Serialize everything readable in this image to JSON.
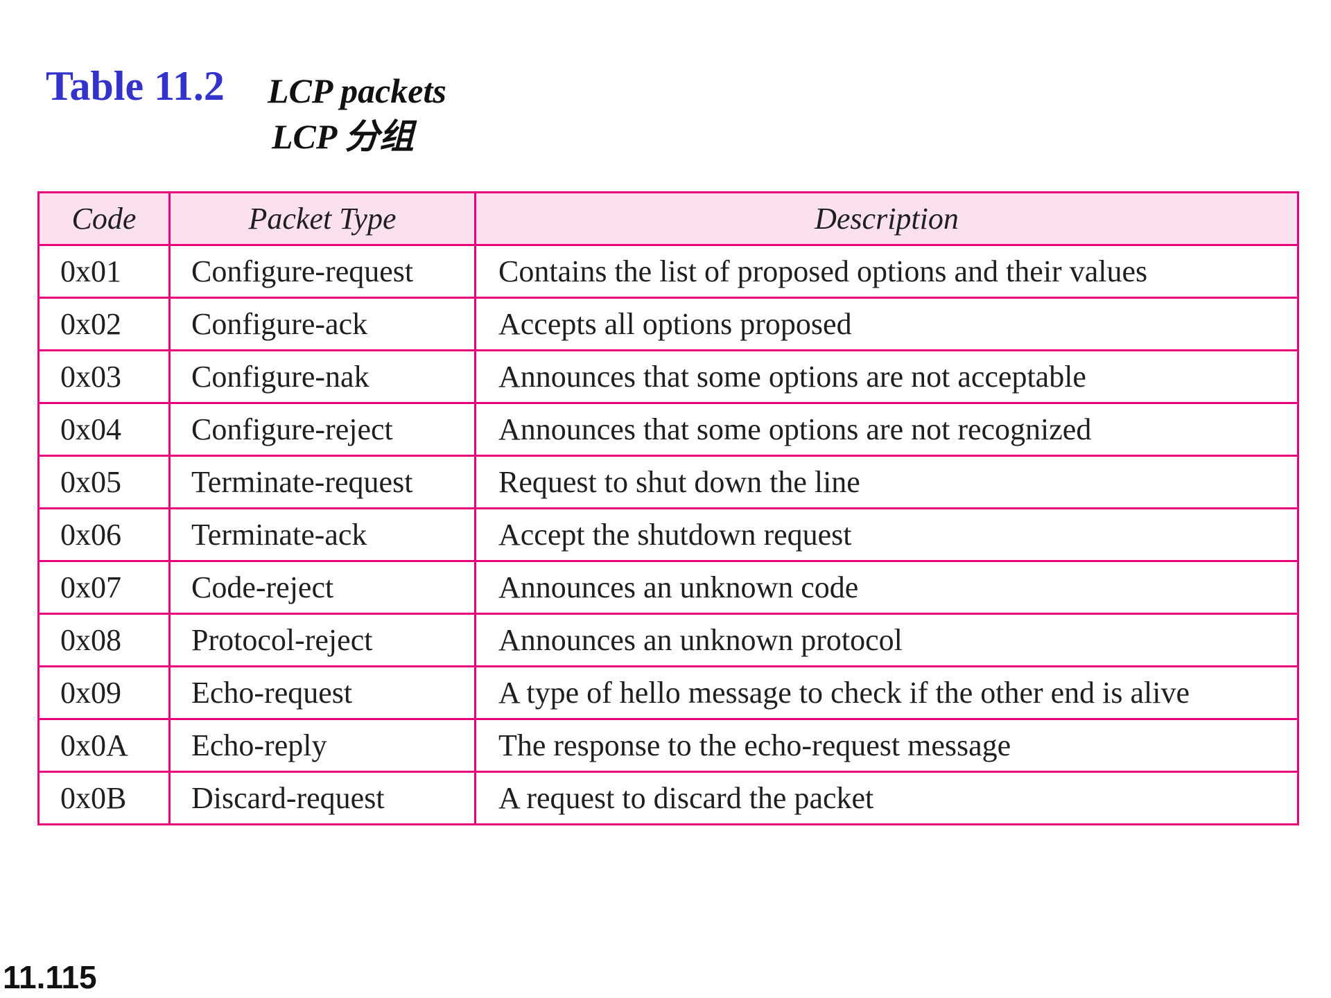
{
  "title": {
    "number": "Table 11.2",
    "caption_en": "LCP packets",
    "caption_zh": "LCP 分组"
  },
  "table": {
    "headers": {
      "code": "Code",
      "packet_type": "Packet Type",
      "description": "Description"
    },
    "rows": [
      {
        "code": "0x01",
        "type": "Configure-request",
        "description": "Contains the list of proposed options and their values"
      },
      {
        "code": "0x02",
        "type": "Configure-ack",
        "description": "Accepts all options proposed"
      },
      {
        "code": "0x03",
        "type": "Configure-nak",
        "description": "Announces that some options are not acceptable"
      },
      {
        "code": "0x04",
        "type": "Configure-reject",
        "description": "Announces that some options are not recognized"
      },
      {
        "code": "0x05",
        "type": "Terminate-request",
        "description": "Request to shut down the line"
      },
      {
        "code": "0x06",
        "type": "Terminate-ack",
        "description": "Accept the shutdown request"
      },
      {
        "code": "0x07",
        "type": "Code-reject",
        "description": "Announces an unknown code"
      },
      {
        "code": "0x08",
        "type": "Protocol-reject",
        "description": "Announces an unknown protocol"
      },
      {
        "code": "0x09",
        "type": "Echo-request",
        "description": "A type of hello message to check if the other end is alive"
      },
      {
        "code": "0x0A",
        "type": "Echo-reply",
        "description": "The response to the echo-request message"
      },
      {
        "code": "0x0B",
        "type": "Discard-request",
        "description": "A request to discard the packet"
      }
    ]
  },
  "page_number": "11.115",
  "colors": {
    "title_blue": "#3333cc",
    "border_magenta": "#e6007e",
    "header_fill": "#fbe0ee"
  }
}
